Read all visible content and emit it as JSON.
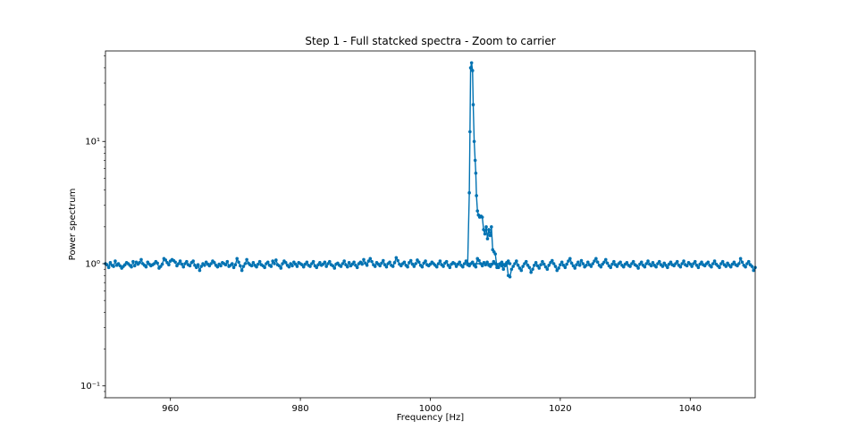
{
  "chart_data": {
    "type": "line",
    "title": "Step 1 - Full statcked spectra - Zoom to carrier",
    "xlabel": "Frequency [Hz]",
    "ylabel": "Power spectrum",
    "xlim": [
      950,
      1050
    ],
    "ylim": [
      0.08,
      55
    ],
    "yscale": "log",
    "grid": false,
    "x_ticks": [
      960,
      980,
      1000,
      1020,
      1040
    ],
    "x_tick_labels": [
      "960",
      "980",
      "1000",
      "1020",
      "1040"
    ],
    "y_major_ticks": [
      0.1,
      1,
      10
    ],
    "y_tick_labels": [
      "10⁻¹",
      "10⁰",
      "10¹"
    ],
    "series": [
      {
        "color": "#0072b2",
        "marker": "circle",
        "x_start": 950,
        "x_step": 0.25,
        "peak": [
          [
            1005.75,
            1.0
          ],
          [
            1006.0,
            3.8
          ],
          [
            1006.1,
            12.0
          ],
          [
            1006.2,
            40.0
          ],
          [
            1006.35,
            44.0
          ],
          [
            1006.5,
            38.0
          ],
          [
            1006.6,
            20.0
          ],
          [
            1006.75,
            10.0
          ],
          [
            1006.9,
            7.0
          ],
          [
            1007.0,
            5.5
          ],
          [
            1007.1,
            3.6
          ],
          [
            1007.25,
            2.7
          ],
          [
            1007.4,
            2.5
          ],
          [
            1007.6,
            2.4
          ],
          [
            1007.8,
            2.45
          ],
          [
            1008.0,
            2.4
          ],
          [
            1008.2,
            1.9
          ],
          [
            1008.4,
            1.75
          ],
          [
            1008.6,
            2.0
          ],
          [
            1008.8,
            1.6
          ],
          [
            1009.0,
            1.9
          ],
          [
            1009.2,
            1.7
          ],
          [
            1009.4,
            2.0
          ],
          [
            1009.6,
            1.3
          ],
          [
            1009.8,
            1.25
          ],
          [
            1010.0,
            1.2
          ],
          [
            1010.25,
            0.93
          ]
        ],
        "values": [
          1.0,
          0.98,
          0.93,
          1.02,
          0.97,
          0.95,
          1.05,
          0.97,
          1.0,
          0.96,
          0.92,
          0.95,
          0.98,
          1.02,
          1.0,
          0.97,
          0.94,
          1.04,
          0.96,
          1.03,
          0.99,
          1.02,
          1.08,
          1.0,
          0.97,
          0.94,
          1.03,
          0.99,
          0.96,
          0.98,
          1.0,
          1.04,
          1.01,
          0.92,
          0.95,
          0.99,
          1.1,
          1.07,
          1.02,
          0.98,
          1.05,
          1.08,
          1.06,
          1.03,
          0.96,
          1.0,
          1.05,
          0.99,
          0.94,
          1.0,
          1.04,
          0.98,
          0.96,
          1.02,
          1.05,
          0.97,
          0.93,
          0.98,
          0.88,
          0.95,
          1.0,
          0.97,
          1.03,
          0.99,
          0.96,
          1.0,
          1.05,
          1.02,
          0.97,
          0.94,
          0.99,
          0.96,
          1.02,
          1.0,
          0.98,
          1.04,
          0.95,
          0.97,
          1.0,
          0.93,
          0.98,
          1.1,
          1.03,
          0.96,
          0.88,
          0.95,
          1.0,
          1.08,
          1.01,
          0.98,
          0.96,
          1.02,
          0.97,
          0.94,
          0.99,
          1.04,
          0.98,
          0.96,
          0.93,
          1.0,
          1.03,
          0.97,
          0.95,
          1.05,
          1.0,
          1.07,
          0.98,
          0.96,
          0.92,
          1.0,
          1.05,
          1.02,
          0.97,
          0.94,
          1.0,
          0.96,
          1.03,
          0.99,
          0.95,
          1.02,
          1.0,
          0.98,
          0.94,
          0.99,
          1.03,
          0.97,
          0.95,
          1.0,
          1.04,
          0.96,
          0.93,
          0.98,
          1.02,
          0.97,
          0.99,
          1.03,
          0.95,
          1.0,
          1.04,
          0.98,
          0.96,
          0.92,
          0.99,
          1.01,
          0.97,
          0.95,
          1.0,
          1.05,
          0.98,
          0.94,
          1.02,
          0.96,
          0.99,
          1.03,
          0.97,
          0.93,
          1.0,
          1.03,
          0.99,
          1.08,
          1.01,
          0.97,
          1.05,
          1.1,
          1.04,
          0.98,
          0.95,
          1.02,
          0.99,
          0.96,
          1.01,
          1.06,
          0.98,
          0.94,
          1.0,
          1.03,
          0.97,
          0.95,
          1.02,
          1.12,
          1.06,
          0.99,
          0.96,
          1.0,
          1.03,
          0.97,
          0.94,
          1.02,
          1.06,
          0.99,
          0.95,
          1.0,
          1.07,
          1.03,
          0.97,
          0.94,
          1.01,
          1.05,
          0.98,
          0.96,
          0.99,
          1.03,
          1.0,
          0.97,
          0.94,
          1.0,
          1.05,
          0.98,
          0.95,
          1.01,
          1.04,
          0.97,
          0.93,
          0.99,
          1.02,
          1.0,
          0.95,
          0.99,
          1.03,
          0.97,
          0.94,
          1.0,
          1.05,
          0.98,
          0.96,
          1.0,
          1.03,
          0.97,
          0.94,
          1.1,
          1.06,
          1.0,
          0.96,
          1.02,
          0.98,
          1.03,
          0.97,
          0.95,
          0.99,
          1.04,
          1.0,
          0.97,
          0.94,
          0.99,
          1.03,
          0.98,
          0.96,
          1.0,
          1.05,
          1.0
        ],
        "values_after_peak": [
          0.93,
          1.0,
          0.96,
          0.9,
          0.98,
          1.02,
          0.8,
          0.78,
          0.9,
          0.95,
          1.0,
          1.05,
          0.97,
          0.92,
          0.88,
          0.95,
          1.0,
          1.04,
          0.97,
          0.93,
          0.85,
          0.9,
          0.97,
          1.02,
          0.96,
          0.92,
          0.98,
          1.04,
          0.99,
          0.94,
          0.9,
          0.97,
          1.02,
          1.06,
          1.0,
          0.95,
          0.88,
          0.92,
          0.98,
          1.03,
          0.97,
          0.93,
          0.99,
          1.05,
          1.1,
          1.01,
          0.96,
          0.92,
          0.98,
          1.03,
          0.97,
          1.06,
          1.0,
          0.94,
          0.97,
          1.03,
          0.98,
          0.95,
          1.0,
          1.05,
          1.1,
          1.03,
          0.97,
          0.94,
          0.99,
          1.03,
          1.08,
          1.01,
          0.96,
          0.93,
          0.99,
          1.04,
          0.98,
          0.95,
          1.0,
          1.03,
          0.97,
          0.94,
          0.99,
          1.02,
          0.97,
          0.95,
          1.0,
          1.04,
          0.98,
          0.96,
          0.92,
          0.99,
          1.03,
          0.97,
          0.94,
          1.0,
          1.05,
          0.99,
          0.96,
          1.02,
          0.97,
          0.94,
          1.0,
          1.04,
          0.98,
          0.95,
          1.01,
          0.97,
          0.93,
          0.99,
          1.03,
          0.98,
          0.96,
          1.0,
          1.04,
          0.97,
          0.94,
          1.0,
          1.05,
          0.98,
          0.96,
          1.02,
          0.99,
          0.95,
          1.0,
          1.04,
          0.97,
          0.93,
          0.99,
          1.03,
          0.98,
          0.96,
          1.0,
          1.03,
          0.97,
          0.94,
          1.0,
          1.05,
          0.99,
          0.96,
          0.93,
          1.0,
          1.04,
          0.98,
          0.95,
          1.01,
          0.97,
          0.94,
          0.99,
          1.03,
          0.98,
          0.96,
          1.0,
          1.1,
          1.03,
          0.97,
          0.94,
          1.0,
          1.04,
          0.98,
          0.95,
          0.88,
          0.93,
          0.99,
          1.03,
          0.97,
          0.94,
          1.0,
          1.05,
          0.99,
          0.96,
          1.02,
          0.98,
          0.95,
          1.0,
          1.04,
          0.98,
          0.95,
          1.0,
          1.03,
          0.97,
          0.94,
          1.0,
          1.05,
          1.1,
          1.03,
          0.97,
          0.94,
          1.0,
          1.04,
          0.98,
          1.06,
          1.0,
          0.96,
          1.02,
          1.07,
          1.01,
          0.97,
          0.93,
          1.0,
          1.04,
          0.98,
          0.95,
          1.01,
          1.05,
          0.99,
          0.96,
          0.92,
          0.99,
          1.04,
          0.98,
          1.05,
          1.0
        ]
      }
    ]
  }
}
